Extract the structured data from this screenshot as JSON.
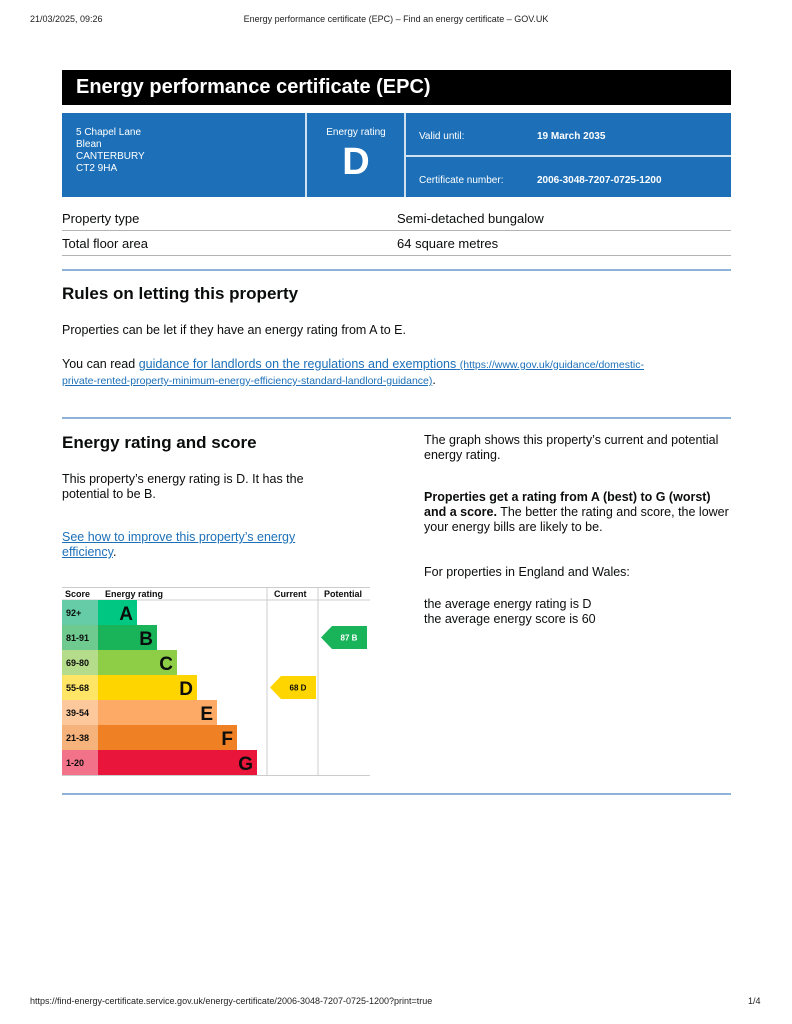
{
  "print_header": {
    "datetime": "21/03/2025, 09:26",
    "title": "Energy performance certificate (EPC) – Find an energy certificate – GOV.UK"
  },
  "print_footer": {
    "url": "https://find-energy-certificate.service.gov.uk/energy-certificate/2006-3048-7207-0725-1200?print=true",
    "page": "1/4"
  },
  "title": "Energy performance certificate (EPC)",
  "summary": {
    "address": [
      "5 Chapel Lane",
      "Blean",
      "CANTERBURY",
      "CT2 9HA"
    ],
    "rating_label": "Energy rating",
    "rating": "D",
    "valid_label": "Valid until:",
    "valid_value": "19 March 2035",
    "cert_label": "Certificate number:",
    "cert_value": "2006-3048-7207-0725-1200",
    "color": "#1d70b8"
  },
  "properties": [
    {
      "label": "Property type",
      "value": "Semi-detached bungalow"
    },
    {
      "label": "Total floor area",
      "value": "64 square metres"
    }
  ],
  "letting": {
    "heading": "Rules on letting this property",
    "p1": "Properties can be let if they have an energy rating from A to E.",
    "p2_pre": "You can read ",
    "link": "guidance for landlords on the regulations and exemptions",
    "link_url_1": "(https://www.gov.uk/guidance/domestic-",
    "link_url_2": "private-rented-property-minimum-energy-efficiency-standard-landlord-guidance)",
    "p2_post": "."
  },
  "energy": {
    "heading": "Energy rating and score",
    "p1": "This property’s energy rating is D. It has the potential to be B.",
    "link": "See how to improve this property’s energy efficiency",
    "link_post": ".",
    "right_p1": "The graph shows this property’s current and potential energy rating.",
    "right_bold": "Properties get a rating from A (best) to G (worst) and a score.",
    "right_p2": " The better the rating and score, the lower your energy bills are likely to be.",
    "right_p3": "For properties in England and Wales:",
    "right_p4a": "the average energy rating is D",
    "right_p4b": "the average energy score is 60"
  },
  "chart_data": {
    "type": "bar",
    "headers": {
      "score": "Score",
      "rating": "Energy rating",
      "current": "Current",
      "potential": "Potential"
    },
    "bands": [
      {
        "letter": "A",
        "range": "92+",
        "color": "#00c781",
        "score_bg": "#66cca8"
      },
      {
        "letter": "B",
        "range": "81-91",
        "color": "#19b459",
        "score_bg": "#6fca8f"
      },
      {
        "letter": "C",
        "range": "69-80",
        "color": "#8dce46",
        "score_bg": "#b4dc8b"
      },
      {
        "letter": "D",
        "range": "55-68",
        "color": "#ffd500",
        "score_bg": "#ffe566"
      },
      {
        "letter": "E",
        "range": "39-54",
        "color": "#fcaa65",
        "score_bg": "#fdc99c"
      },
      {
        "letter": "F",
        "range": "21-38",
        "color": "#ef8023",
        "score_bg": "#f5b27b"
      },
      {
        "letter": "G",
        "range": "1-20",
        "color": "#e9153b",
        "score_bg": "#f27389"
      }
    ],
    "current": {
      "score": 68,
      "letter": "D",
      "label": "68  D"
    },
    "potential": {
      "score": 87,
      "letter": "B",
      "label": "87  B"
    }
  }
}
